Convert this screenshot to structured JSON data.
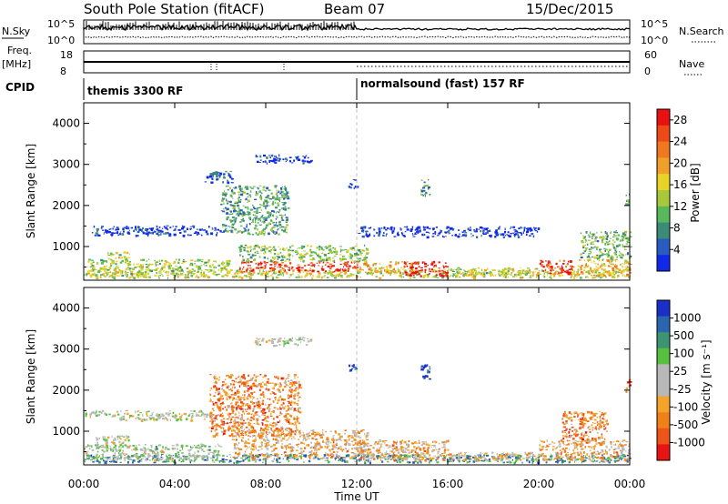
{
  "header": {
    "station": "South Pole Station (fitACF)",
    "beam": "Beam 07",
    "date": "15/Dec/2015"
  },
  "params": {
    "nsky_label": "N.Sky",
    "nsky_ticks": [
      "10^5",
      "10^0"
    ],
    "nsearch_label": "N.Search",
    "nsearch_ticks": [
      "10^5",
      "10^0"
    ],
    "freq_label": "Freq.",
    "freq_unit": "[MHz]",
    "freq_ticks": [
      "18",
      "8"
    ],
    "nave_label": "Nave",
    "nave_ticks": [
      "60",
      "0"
    ],
    "cpid_label": "CPID",
    "cpid_segments": [
      {
        "label": "themis 3300 RF",
        "start": "00:00"
      },
      {
        "label": "normalsound (fast) 157 RF",
        "start": "12:00"
      }
    ]
  },
  "chart_data": [
    {
      "type": "heatmap",
      "name": "power",
      "xlabel": "Time UT",
      "ylabel": "Slant Range [km]",
      "x_ticks": [
        "00:00",
        "04:00",
        "08:00",
        "12:00",
        "16:00",
        "20:00",
        "00:00"
      ],
      "xlim_hours": [
        0,
        24
      ],
      "ylim_km": [
        180,
        4500
      ],
      "y_ticks": [
        1000,
        2000,
        3000,
        4000
      ],
      "colorbar": {
        "label": "Power [dB]",
        "ticks": [
          "4",
          "8",
          "12",
          "16",
          "20",
          "24",
          "28"
        ],
        "range": [
          0,
          30
        ],
        "colors": [
          "#1028e8",
          "#2a5cc0",
          "#3c8a78",
          "#58b85c",
          "#a8c83c",
          "#e8d428",
          "#f0a028",
          "#f07820",
          "#ec4a18",
          "#e81010"
        ]
      },
      "regions": [
        {
          "t0": 0.0,
          "t1": 24.0,
          "r0": 250,
          "r1": 450,
          "level": 0.5
        },
        {
          "t0": 0.0,
          "t1": 6.5,
          "r0": 300,
          "r1": 700,
          "level": 0.45
        },
        {
          "t0": 0.3,
          "t1": 6.0,
          "r0": 1280,
          "r1": 1520,
          "level": 0.05
        },
        {
          "t0": 1.0,
          "t1": 2.0,
          "r0": 700,
          "r1": 900,
          "level": 0.45
        },
        {
          "t0": 6.8,
          "t1": 12.0,
          "r0": 400,
          "r1": 650,
          "level": 0.9
        },
        {
          "t0": 6.8,
          "t1": 12.5,
          "r0": 650,
          "r1": 1050,
          "level": 0.4
        },
        {
          "t0": 12.0,
          "t1": 14.5,
          "r0": 350,
          "r1": 650,
          "level": 0.6
        },
        {
          "t0": 14.0,
          "t1": 16.0,
          "r0": 300,
          "r1": 650,
          "level": 1.0
        },
        {
          "t0": 16.0,
          "t1": 20.0,
          "r0": 300,
          "r1": 500,
          "level": 0.45
        },
        {
          "t0": 20.0,
          "t1": 21.5,
          "r0": 350,
          "r1": 700,
          "level": 0.9
        },
        {
          "t0": 21.5,
          "t1": 24.0,
          "r0": 300,
          "r1": 700,
          "level": 0.6
        },
        {
          "t0": 21.8,
          "t1": 24.0,
          "r0": 700,
          "r1": 1400,
          "level": 0.35
        },
        {
          "t0": 7.5,
          "t1": 10.0,
          "r0": 3050,
          "r1": 3250,
          "level": 0.1
        },
        {
          "t0": 5.3,
          "t1": 6.5,
          "r0": 2550,
          "r1": 2850,
          "level": 0.15
        },
        {
          "t0": 6.0,
          "t1": 9.0,
          "r0": 1300,
          "r1": 2500,
          "level": 0.3
        },
        {
          "t0": 11.6,
          "t1": 12.0,
          "r0": 2450,
          "r1": 2650,
          "level": 0.05
        },
        {
          "t0": 14.8,
          "t1": 15.2,
          "r0": 2250,
          "r1": 2650,
          "level": 0.3
        },
        {
          "t0": 12.0,
          "t1": 20.0,
          "r0": 1250,
          "r1": 1500,
          "level": 0.05
        },
        {
          "t0": 23.8,
          "t1": 24.0,
          "r0": 1900,
          "r1": 2300,
          "level": 0.35
        }
      ]
    },
    {
      "type": "heatmap",
      "name": "velocity",
      "xlabel": "Time UT",
      "ylabel": "Slant Range [km]",
      "x_ticks": [
        "00:00",
        "04:00",
        "08:00",
        "12:00",
        "16:00",
        "20:00",
        "00:00"
      ],
      "xlim_hours": [
        0,
        24
      ],
      "ylim_km": [
        180,
        4500
      ],
      "y_ticks": [
        1000,
        2000,
        3000,
        4000
      ],
      "colorbar": {
        "label": "Velocity [m s⁻¹]",
        "ticks": [
          "1000",
          "500",
          "100",
          "25",
          "-25",
          "-100",
          "-500",
          "-1000"
        ],
        "colors": [
          "#1a2ec8",
          "#2a66b0",
          "#3c9470",
          "#58c040",
          "#b8b8b8",
          "#b8b8b8",
          "#f4a428",
          "#f08018",
          "#ec5418",
          "#e81414"
        ]
      },
      "regions": [
        {
          "t0": 0.0,
          "t1": 24.0,
          "r0": 250,
          "r1": 450,
          "level": 0.25
        },
        {
          "t0": 0.0,
          "t1": 6.0,
          "r0": 300,
          "r1": 700,
          "level": 0.45
        },
        {
          "t0": 0.0,
          "t1": 1.5,
          "r0": 1380,
          "r1": 1520,
          "level": 0.5
        },
        {
          "t0": 1.5,
          "t1": 5.7,
          "r0": 1280,
          "r1": 1520,
          "level": 0.5
        },
        {
          "t0": 0.5,
          "t1": 2.0,
          "r0": 600,
          "r1": 900,
          "level": 0.5
        },
        {
          "t0": 6.5,
          "t1": 12.5,
          "r0": 350,
          "r1": 1050,
          "level": 0.65
        },
        {
          "t0": 12.0,
          "t1": 16.0,
          "r0": 300,
          "r1": 800,
          "level": 0.65
        },
        {
          "t0": 16.0,
          "t1": 20.0,
          "r0": 300,
          "r1": 500,
          "level": 0.6
        },
        {
          "t0": 20.0,
          "t1": 24.0,
          "r0": 300,
          "r1": 800,
          "level": 0.65
        },
        {
          "t0": 21.0,
          "t1": 23.0,
          "r0": 800,
          "r1": 1500,
          "level": 0.75
        },
        {
          "t0": 7.5,
          "t1": 10.0,
          "r0": 3100,
          "r1": 3300,
          "level": 0.5
        },
        {
          "t0": 5.5,
          "t1": 9.5,
          "r0": 900,
          "r1": 2400,
          "level": 0.75
        },
        {
          "t0": 11.6,
          "t1": 12.0,
          "r0": 2450,
          "r1": 2650,
          "level": 0.05
        },
        {
          "t0": 14.8,
          "t1": 15.2,
          "r0": 2250,
          "r1": 2650,
          "level": 0.05
        },
        {
          "t0": 23.8,
          "t1": 24.0,
          "r0": 1900,
          "r1": 2300,
          "level": 0.85
        }
      ]
    }
  ]
}
